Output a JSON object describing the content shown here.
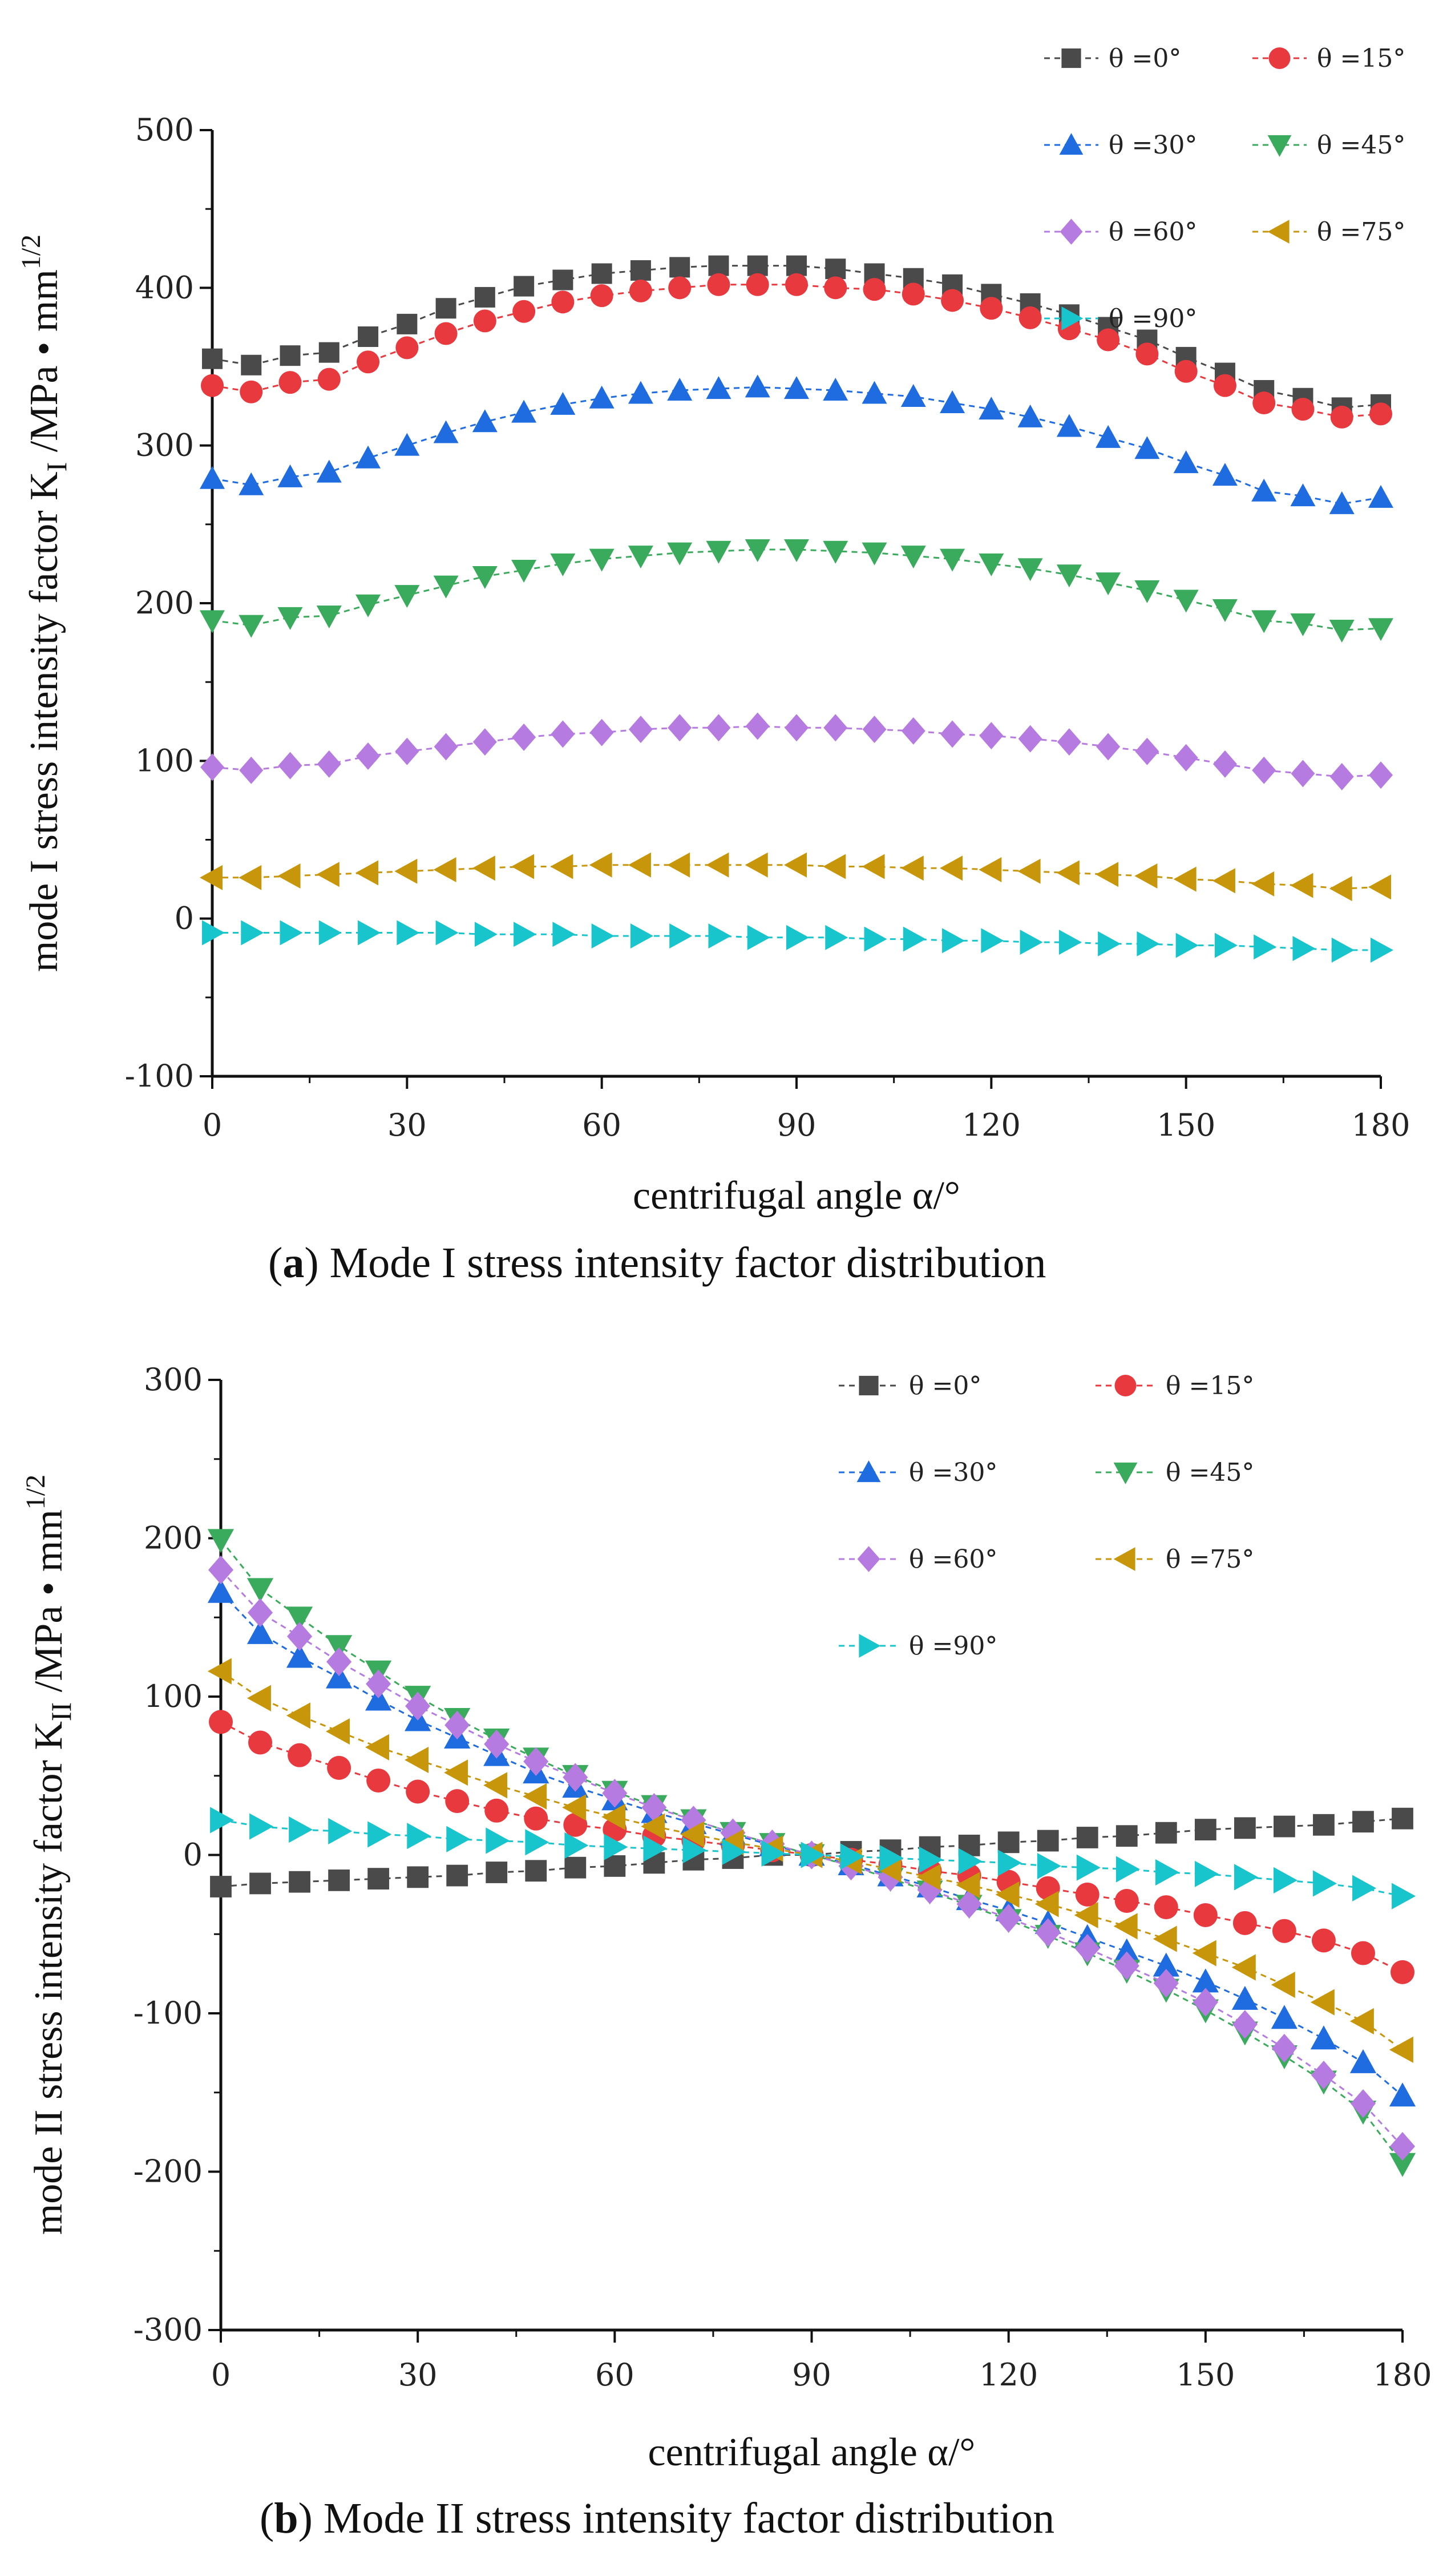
{
  "chart_data": [
    {
      "id": "a",
      "type": "line",
      "title": "",
      "caption": {
        "letter": "a",
        "text": ") Mode I stress intensity factor distribution"
      },
      "xlabel": "centrifugal angle  α/°",
      "ylabel": {
        "prefix": "mode I    stress intensity factor  K",
        "sub": "I",
        "mid": " /MPa • mm",
        "sup": "1/2"
      },
      "xlim": [
        0,
        180
      ],
      "ylim": [
        -100,
        500
      ],
      "xticks": [
        "0",
        "30",
        "60",
        "90",
        "120",
        "150",
        "180"
      ],
      "yticks": [
        "-100",
        "0",
        "100",
        "200",
        "300",
        "400",
        "500"
      ],
      "legend_position": "top-right",
      "series": [
        {
          "name": "θ =0°",
          "color": "#4a4a4a",
          "marker": "square",
          "x": [
            0,
            6,
            12,
            18,
            24,
            30,
            36,
            42,
            48,
            54,
            60,
            66,
            72,
            78,
            84,
            90,
            96,
            102,
            108,
            114,
            120,
            126,
            132,
            138,
            144,
            150,
            156,
            162,
            168,
            174,
            180
          ],
          "y": [
            355,
            351,
            357,
            359,
            369,
            377,
            387,
            394,
            401,
            405,
            409,
            411,
            413,
            414,
            414,
            414,
            412,
            409,
            406,
            402,
            396,
            390,
            383,
            375,
            367,
            356,
            346,
            335,
            330,
            324,
            326
          ]
        },
        {
          "name": "θ =15°",
          "color": "#e8393f",
          "marker": "circle",
          "x": [
            0,
            6,
            12,
            18,
            24,
            30,
            36,
            42,
            48,
            54,
            60,
            66,
            72,
            78,
            84,
            90,
            96,
            102,
            108,
            114,
            120,
            126,
            132,
            138,
            144,
            150,
            156,
            162,
            168,
            174,
            180
          ],
          "y": [
            338,
            334,
            340,
            342,
            353,
            362,
            371,
            379,
            385,
            391,
            395,
            398,
            400,
            402,
            402,
            402,
            400,
            399,
            396,
            392,
            387,
            381,
            374,
            367,
            358,
            347,
            338,
            327,
            323,
            318,
            320
          ]
        },
        {
          "name": "θ =30°",
          "color": "#1f6be0",
          "marker": "triangle-up",
          "x": [
            0,
            6,
            12,
            18,
            24,
            30,
            36,
            42,
            48,
            54,
            60,
            66,
            72,
            78,
            84,
            90,
            96,
            102,
            108,
            114,
            120,
            126,
            132,
            138,
            144,
            150,
            156,
            162,
            168,
            174,
            180
          ],
          "y": [
            279,
            275,
            280,
            283,
            292,
            300,
            308,
            315,
            321,
            326,
            330,
            333,
            335,
            336,
            337,
            336,
            335,
            333,
            331,
            327,
            323,
            318,
            312,
            305,
            298,
            289,
            281,
            271,
            268,
            263,
            267
          ]
        },
        {
          "name": "θ =45°",
          "color": "#3aaa5c",
          "marker": "triangle-down",
          "x": [
            0,
            6,
            12,
            18,
            24,
            30,
            36,
            42,
            48,
            54,
            60,
            66,
            72,
            78,
            84,
            90,
            96,
            102,
            108,
            114,
            120,
            126,
            132,
            138,
            144,
            150,
            156,
            162,
            168,
            174,
            180
          ],
          "y": [
            189,
            186,
            191,
            192,
            199,
            205,
            211,
            217,
            221,
            225,
            228,
            230,
            232,
            233,
            234,
            234,
            233,
            232,
            230,
            228,
            225,
            222,
            218,
            213,
            208,
            202,
            196,
            189,
            187,
            183,
            184
          ]
        },
        {
          "name": "θ =60°",
          "color": "#b57be0",
          "marker": "diamond",
          "x": [
            0,
            6,
            12,
            18,
            24,
            30,
            36,
            42,
            48,
            54,
            60,
            66,
            72,
            78,
            84,
            90,
            96,
            102,
            108,
            114,
            120,
            126,
            132,
            138,
            144,
            150,
            156,
            162,
            168,
            174,
            180
          ],
          "y": [
            96,
            94,
            97,
            98,
            103,
            106,
            109,
            112,
            115,
            117,
            118,
            120,
            121,
            121,
            122,
            121,
            121,
            120,
            119,
            117,
            116,
            114,
            112,
            109,
            106,
            102,
            98,
            94,
            92,
            90,
            91
          ]
        },
        {
          "name": "θ =75°",
          "color": "#c8960a",
          "marker": "triangle-left",
          "x": [
            0,
            6,
            12,
            18,
            24,
            30,
            36,
            42,
            48,
            54,
            60,
            66,
            72,
            78,
            84,
            90,
            96,
            102,
            108,
            114,
            120,
            126,
            132,
            138,
            144,
            150,
            156,
            162,
            168,
            174,
            180
          ],
          "y": [
            26,
            26,
            27,
            28,
            29,
            30,
            31,
            32,
            33,
            33,
            34,
            34,
            34,
            34,
            34,
            34,
            33,
            33,
            32,
            32,
            31,
            30,
            29,
            28,
            27,
            25,
            24,
            22,
            21,
            19,
            20
          ]
        },
        {
          "name": "θ =90°",
          "color": "#18c5cc",
          "marker": "triangle-right",
          "x": [
            0,
            6,
            12,
            18,
            24,
            30,
            36,
            42,
            48,
            54,
            60,
            66,
            72,
            78,
            84,
            90,
            96,
            102,
            108,
            114,
            120,
            126,
            132,
            138,
            144,
            150,
            156,
            162,
            168,
            174,
            180
          ],
          "y": [
            -9,
            -9,
            -9,
            -9,
            -9,
            -9,
            -9,
            -10,
            -10,
            -10,
            -11,
            -11,
            -11,
            -11,
            -12,
            -12,
            -12,
            -13,
            -13,
            -14,
            -14,
            -15,
            -15,
            -16,
            -16,
            -17,
            -17,
            -18,
            -19,
            -20,
            -20
          ]
        }
      ]
    },
    {
      "id": "b",
      "type": "line",
      "title": "",
      "caption": {
        "letter": "b",
        "text": ") Mode II stress intensity factor distribution"
      },
      "xlabel": "centrifugal angle  α/°",
      "ylabel": {
        "prefix": "mode  II    stress intensity factor  K",
        "sub": "II",
        "mid": " /MPa • mm",
        "sup": "1/2"
      },
      "xlim": [
        0,
        180
      ],
      "ylim": [
        -300,
        300
      ],
      "xticks": [
        "0",
        "30",
        "60",
        "90",
        "120",
        "150",
        "180"
      ],
      "yticks": [
        "-300",
        "-200",
        "-100",
        "0",
        "100",
        "200",
        "300"
      ],
      "legend_position": "top-right",
      "series": [
        {
          "name": "θ =0°",
          "color": "#4a4a4a",
          "marker": "square",
          "x": [
            0,
            6,
            12,
            18,
            24,
            30,
            36,
            42,
            48,
            54,
            60,
            66,
            72,
            78,
            84,
            90,
            96,
            102,
            108,
            114,
            120,
            126,
            132,
            138,
            144,
            150,
            156,
            162,
            168,
            174,
            180
          ],
          "y": [
            -20,
            -18,
            -17,
            -16,
            -15,
            -14,
            -13,
            -11,
            -10,
            -8,
            -7,
            -5,
            -3,
            -2,
            0,
            0,
            2,
            3,
            5,
            6,
            8,
            9,
            11,
            12,
            14,
            16,
            17,
            18,
            19,
            21,
            23
          ]
        },
        {
          "name": "θ =15°",
          "color": "#e8393f",
          "marker": "circle",
          "x": [
            0,
            6,
            12,
            18,
            24,
            30,
            36,
            42,
            48,
            54,
            60,
            66,
            72,
            78,
            84,
            90,
            96,
            102,
            108,
            114,
            120,
            126,
            132,
            138,
            144,
            150,
            156,
            162,
            168,
            174,
            180
          ],
          "y": [
            84,
            71,
            63,
            55,
            47,
            40,
            34,
            28,
            23,
            19,
            16,
            12,
            9,
            6,
            3,
            0,
            -3,
            -6,
            -10,
            -13,
            -17,
            -21,
            -25,
            -29,
            -33,
            -38,
            -43,
            -48,
            -54,
            -62,
            -74
          ]
        },
        {
          "name": "θ =30°",
          "color": "#1f6be0",
          "marker": "triangle-up",
          "x": [
            0,
            6,
            12,
            18,
            24,
            30,
            36,
            42,
            48,
            54,
            60,
            66,
            72,
            78,
            84,
            90,
            96,
            102,
            108,
            114,
            120,
            126,
            132,
            138,
            144,
            150,
            156,
            162,
            168,
            174,
            180
          ],
          "y": [
            166,
            140,
            125,
            112,
            98,
            85,
            74,
            63,
            52,
            43,
            35,
            27,
            20,
            13,
            6,
            0,
            -6,
            -13,
            -20,
            -28,
            -35,
            -43,
            -52,
            -61,
            -70,
            -80,
            -91,
            -103,
            -116,
            -131,
            -152
          ]
        },
        {
          "name": "θ =45°",
          "color": "#3aaa5c",
          "marker": "triangle-down",
          "x": [
            0,
            6,
            12,
            18,
            24,
            30,
            36,
            42,
            48,
            54,
            60,
            66,
            72,
            78,
            84,
            90,
            96,
            102,
            108,
            114,
            120,
            126,
            132,
            138,
            144,
            150,
            156,
            162,
            168,
            174,
            180
          ],
          "y": [
            199,
            168,
            150,
            132,
            116,
            100,
            86,
            73,
            61,
            50,
            40,
            31,
            22,
            14,
            7,
            0,
            -7,
            -15,
            -23,
            -32,
            -41,
            -51,
            -62,
            -73,
            -85,
            -98,
            -112,
            -127,
            -143,
            -162,
            -195
          ]
        },
        {
          "name": "θ =60°",
          "color": "#b57be0",
          "marker": "diamond",
          "x": [
            0,
            6,
            12,
            18,
            24,
            30,
            36,
            42,
            48,
            54,
            60,
            66,
            72,
            78,
            84,
            90,
            96,
            102,
            108,
            114,
            120,
            126,
            132,
            138,
            144,
            150,
            156,
            162,
            168,
            174,
            180
          ],
          "y": [
            180,
            153,
            138,
            122,
            108,
            94,
            82,
            70,
            59,
            49,
            39,
            30,
            22,
            14,
            7,
            0,
            -7,
            -14,
            -22,
            -31,
            -40,
            -49,
            -59,
            -70,
            -81,
            -93,
            -107,
            -122,
            -139,
            -157,
            -184
          ]
        },
        {
          "name": "θ =75°",
          "color": "#c8960a",
          "marker": "triangle-left",
          "x": [
            0,
            6,
            12,
            18,
            24,
            30,
            36,
            42,
            48,
            54,
            60,
            66,
            72,
            78,
            84,
            90,
            96,
            102,
            108,
            114,
            120,
            126,
            132,
            138,
            144,
            150,
            156,
            162,
            168,
            174,
            180
          ],
          "y": [
            116,
            99,
            88,
            78,
            68,
            60,
            52,
            44,
            37,
            30,
            24,
            18,
            13,
            8,
            4,
            0,
            -4,
            -9,
            -14,
            -19,
            -25,
            -31,
            -38,
            -45,
            -53,
            -62,
            -71,
            -82,
            -93,
            -105,
            -123
          ]
        },
        {
          "name": "θ =90°",
          "color": "#18c5cc",
          "marker": "triangle-right",
          "x": [
            0,
            6,
            12,
            18,
            24,
            30,
            36,
            42,
            48,
            54,
            60,
            66,
            72,
            78,
            84,
            90,
            96,
            102,
            108,
            114,
            120,
            126,
            132,
            138,
            144,
            150,
            156,
            162,
            168,
            174,
            180
          ],
          "y": [
            22,
            18,
            16,
            15,
            13,
            12,
            10,
            9,
            8,
            6,
            5,
            4,
            3,
            2,
            1,
            0,
            -1,
            -2,
            -3,
            -4,
            -5,
            -7,
            -8,
            -9,
            -11,
            -12,
            -14,
            -16,
            -18,
            -21,
            -26
          ]
        }
      ]
    }
  ]
}
